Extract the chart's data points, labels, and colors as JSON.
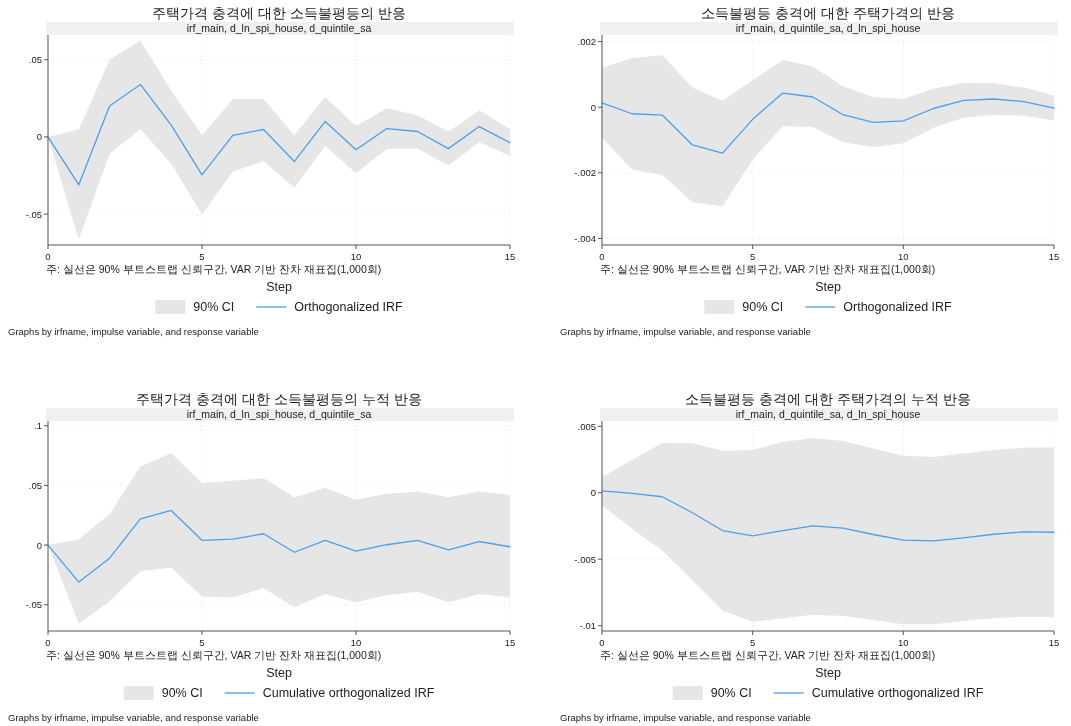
{
  "chart_data": [
    {
      "type": "line",
      "title": "주택가격 충격에 대한 소득불평등의 반응",
      "subtitle": "irf_main, d_ln_spi_house, d_quintile_sa",
      "xlabel": "Step",
      "x": [
        0,
        1,
        2,
        3,
        4,
        5,
        6,
        7,
        8,
        9,
        10,
        11,
        12,
        13,
        14,
        15
      ],
      "xlim": [
        0,
        15
      ],
      "xticks": [
        0,
        5,
        10,
        15
      ],
      "ylim": [
        -0.07,
        0.066
      ],
      "yticks": [
        {
          "value": -0.05,
          "label": "-.05"
        },
        {
          "value": 0,
          "label": "0"
        },
        {
          "value": 0.05,
          "label": ".05"
        }
      ],
      "grid": true,
      "legend": "bottom",
      "annotations": [
        "주: 실선은 90% 부트스트랩 신뢰구간, VAR 기반 잔차 재표집(1,000회)",
        "90% CI",
        "Graphs by irfname, impulse variable, and response variable"
      ],
      "series": [
        {
          "name": "Orthogonalized IRF",
          "color": "#4a9ff0",
          "values": [
            0,
            -0.031,
            0.02,
            0.034,
            0.0076,
            -0.0246,
            0.001,
            0.0048,
            -0.0159,
            0.01,
            -0.0083,
            0.0054,
            0.0035,
            -0.0076,
            0.0067,
            -0.0037
          ],
          "lower": [
            0,
            -0.0665,
            -0.0109,
            0.0052,
            -0.0174,
            -0.0502,
            -0.0224,
            -0.0157,
            -0.033,
            -0.0059,
            -0.0235,
            -0.0076,
            -0.0076,
            -0.0185,
            -0.0035,
            -0.0122
          ],
          "upper": [
            0,
            0.0048,
            0.05,
            0.0624,
            0.03,
            0.001,
            0.0246,
            0.0246,
            0.001,
            0.0259,
            0.007,
            0.0185,
            0.0141,
            0.0033,
            0.0172,
            0.005
          ]
        }
      ]
    },
    {
      "type": "line",
      "title": "소득불평등 충격에 대한 주택가격의 반응",
      "subtitle": "irf_main, d_quintile_sa, d_ln_spi_house",
      "xlabel": "Step",
      "x": [
        0,
        1,
        2,
        3,
        4,
        5,
        6,
        7,
        8,
        9,
        10,
        11,
        12,
        13,
        14,
        15
      ],
      "xlim": [
        0,
        15
      ],
      "xticks": [
        0,
        5,
        10,
        15
      ],
      "ylim": [
        -0.0042,
        0.0022
      ],
      "yticks": [
        {
          "value": -0.004,
          "label": "-.004"
        },
        {
          "value": -0.002,
          "label": "-.002"
        },
        {
          "value": 0,
          "label": "0"
        },
        {
          "value": 0.002,
          "label": ".002"
        }
      ],
      "grid": true,
      "legend": "bottom",
      "annotations": [
        "주: 실선은 90% 부트스트랩 신뢰구간, VAR 기반 잔차 재표집(1,000회)",
        "90% CI",
        "Graphs by irfname, impulse variable, and response variable"
      ],
      "series": [
        {
          "name": "Orthogonalized IRF",
          "color": "#4a9ff0",
          "values": [
            0.00013,
            -0.0002,
            -0.00024,
            -0.00115,
            -0.0014,
            -0.00037,
            0.00043,
            0.00031,
            -0.00023,
            -0.00046,
            -0.00042,
            -4e-05,
            0.00021,
            0.00025,
            0.00017,
            -3e-05
          ],
          "lower": [
            -0.00093,
            -0.0019,
            -0.00206,
            -0.0029,
            -0.00302,
            -0.0016,
            -0.00058,
            -0.0006,
            -0.00107,
            -0.00121,
            -0.0011,
            -0.00063,
            -0.00032,
            -0.00024,
            -0.00026,
            -0.0004
          ],
          "upper": [
            0.0012,
            0.0015,
            0.00158,
            0.0006,
            0.0002,
            0.00082,
            0.00144,
            0.00124,
            0.00064,
            0.0003,
            0.00026,
            0.00056,
            0.00074,
            0.00073,
            0.0006,
            0.00036
          ]
        }
      ]
    },
    {
      "type": "line",
      "title": "주택가격 충격에 대한 소득불평등의 누적 반응",
      "subtitle": "irf_main, d_ln_spi_house, d_quintile_sa",
      "xlabel": "Step",
      "x": [
        0,
        1,
        2,
        3,
        4,
        5,
        6,
        7,
        8,
        9,
        10,
        11,
        12,
        13,
        14,
        15
      ],
      "xlim": [
        0,
        15
      ],
      "xticks": [
        0,
        5,
        10,
        15
      ],
      "ylim": [
        -0.072,
        0.104
      ],
      "yticks": [
        {
          "value": -0.05,
          "label": "-.05"
        },
        {
          "value": 0,
          "label": "0"
        },
        {
          "value": 0.05,
          "label": ".05"
        },
        {
          "value": 0.1,
          "label": ".1"
        }
      ],
      "grid": true,
      "legend": "bottom",
      "annotations": [
        "주: 실선은 90% 부트스트랩 신뢰구간, VAR 기반 잔차 재표집(1,000회)",
        "90% CI",
        "Graphs by irfname, impulse variable, and response variable"
      ],
      "series": [
        {
          "name": "Cumulative orthogonalized IRF",
          "color": "#4a9ff0",
          "values": [
            0,
            -0.031,
            -0.011,
            0.022,
            0.029,
            0.004,
            0.005,
            0.0095,
            -0.006,
            0.004,
            -0.005,
            0.0003,
            0.004,
            -0.004,
            0.003,
            -0.0014
          ],
          "lower": [
            0,
            -0.066,
            -0.047,
            -0.022,
            -0.019,
            -0.043,
            -0.044,
            -0.036,
            -0.052,
            -0.041,
            -0.048,
            -0.042,
            -0.039,
            -0.048,
            -0.041,
            -0.044
          ],
          "upper": [
            0,
            0.005,
            0.026,
            0.066,
            0.077,
            0.052,
            0.054,
            0.056,
            0.04,
            0.048,
            0.038,
            0.043,
            0.045,
            0.04,
            0.045,
            0.042
          ]
        }
      ]
    },
    {
      "type": "line",
      "title": "소득불평등 충격에 대한 주택가격의 누적 반응",
      "subtitle": "irf_main, d_quintile_sa, d_ln_spi_house",
      "xlabel": "Step",
      "x": [
        0,
        1,
        2,
        3,
        4,
        5,
        6,
        7,
        8,
        9,
        10,
        11,
        12,
        13,
        14,
        15
      ],
      "xlim": [
        0,
        15
      ],
      "xticks": [
        0,
        5,
        10,
        15
      ],
      "ylim": [
        -0.0104,
        0.0054
      ],
      "yticks": [
        {
          "value": -0.01,
          "label": "-.01"
        },
        {
          "value": -0.005,
          "label": "-.005"
        },
        {
          "value": 0,
          "label": "0"
        },
        {
          "value": 0.005,
          "label": ".005"
        }
      ],
      "grid": true,
      "legend": "bottom",
      "annotations": [
        "주: 실선은 90% 부트스트랩 신뢰구간, VAR 기반 잔차 재표집(1,000회)",
        "90% CI",
        "Graphs by irfname, impulse variable, and response variable"
      ],
      "series": [
        {
          "name": "Cumulative orthogonalized IRF",
          "color": "#4a9ff0",
          "values": [
            0.00015,
            -5e-05,
            -0.0003,
            -0.0015,
            -0.00284,
            -0.00324,
            -0.00284,
            -0.00249,
            -0.00266,
            -0.00314,
            -0.00357,
            -0.00362,
            -0.00339,
            -0.00312,
            -0.00294,
            -0.00297
          ],
          "lower": [
            -0.00095,
            -0.00271,
            -0.00435,
            -0.0066,
            -0.00887,
            -0.0097,
            -0.00945,
            -0.00917,
            -0.00927,
            -0.00957,
            -0.0099,
            -0.0099,
            -0.00965,
            -0.00945,
            -0.00932,
            -0.00937
          ],
          "upper": [
            0.00118,
            0.00249,
            0.00374,
            0.00372,
            0.00317,
            0.00322,
            0.00382,
            0.00412,
            0.0039,
            0.00334,
            0.00279,
            0.00269,
            0.00296,
            0.00322,
            0.00339,
            0.00342
          ]
        }
      ]
    }
  ]
}
